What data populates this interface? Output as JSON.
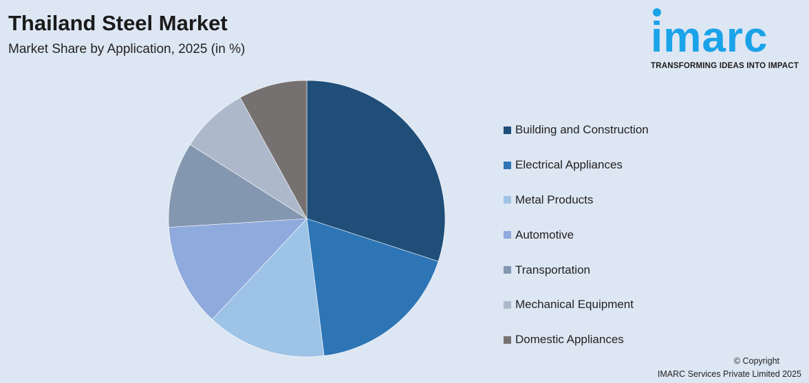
{
  "header": {
    "title": "Thailand Steel Market",
    "subtitle": "Market Share by Application, 2025 (in %)"
  },
  "logo": {
    "word": "imarc",
    "tagline": "TRANSFORMING IDEAS INTO IMPACT"
  },
  "footer": {
    "copyright": "© Copyright",
    "company": "IMARC Services Private Limited 2025"
  },
  "chart_data": {
    "type": "pie",
    "title": "Thailand Steel Market",
    "subtitle": "Market Share by Application, 2025 (in %)",
    "legend_position": "right",
    "categories": [
      "Building and Construction",
      "Electrical Appliances",
      "Metal Products",
      "Automotive",
      "Transportation",
      "Mechanical Equipment",
      "Domestic Appliances"
    ],
    "values": [
      30,
      18,
      14,
      12,
      10,
      8,
      8
    ],
    "colors": [
      "#1f4e79",
      "#2e75b6",
      "#9dc3e6",
      "#8faadc",
      "#8497b0",
      "#adb9ca",
      "#767171"
    ]
  }
}
